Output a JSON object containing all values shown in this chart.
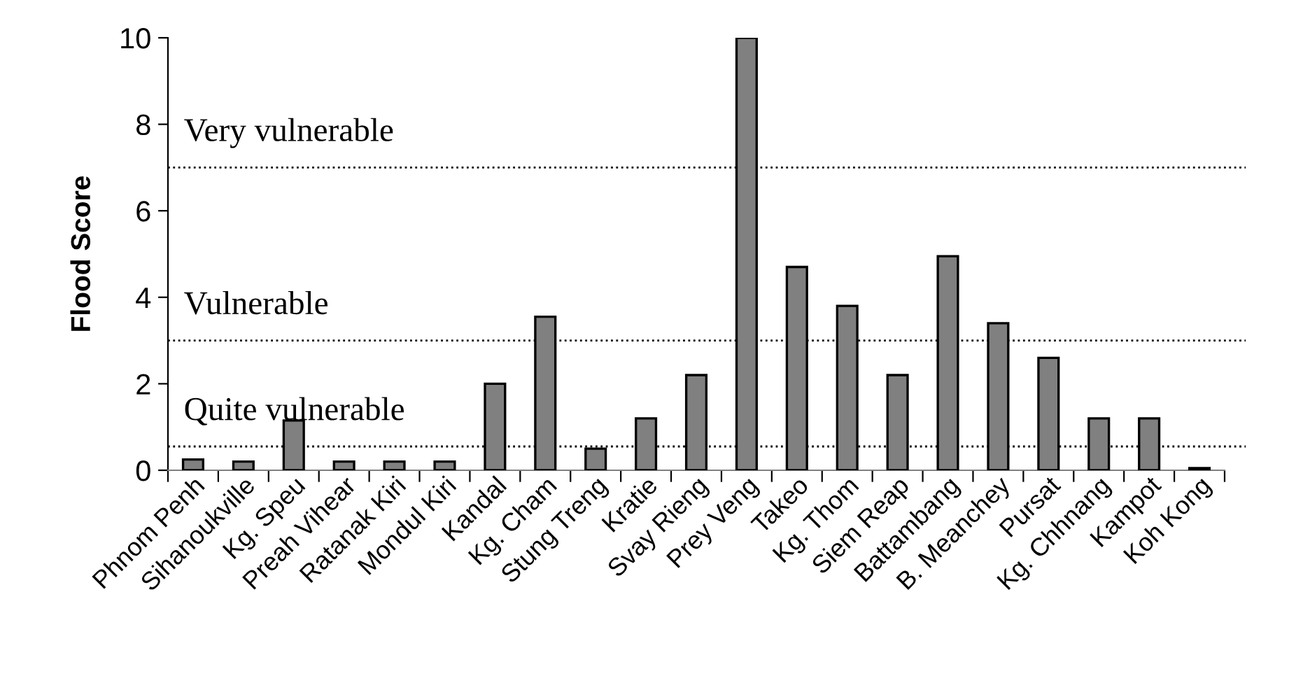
{
  "chart_data": {
    "type": "bar",
    "ylabel": "Flood Score",
    "categories": [
      "Phnom Penh",
      "Sihanoukville",
      "Kg. Speu",
      "Preah Vihear",
      "Ratanak Kiri",
      "Mondul Kiri",
      "Kandal",
      "Kg. Cham",
      "Stung Treng",
      "Kratie",
      "Svay Rieng",
      "Prey Veng",
      "Takeo",
      "Kg. Thom",
      "Siem Reap",
      "Battambang",
      "B. Meanchey",
      "Pursat",
      "Kg. Chhnang",
      "Kampot",
      "Koh Kong"
    ],
    "values": [
      0.25,
      0.2,
      1.15,
      0.2,
      0.2,
      0.2,
      2.0,
      3.55,
      0.5,
      1.2,
      2.2,
      10,
      4.7,
      3.8,
      2.2,
      4.95,
      3.4,
      2.6,
      1.2,
      1.2,
      0.05
    ],
    "color": "#808080",
    "ylim": [
      0,
      10
    ],
    "yticks": [
      0,
      2,
      4,
      6,
      8,
      10
    ],
    "grid": false,
    "legend": false,
    "ref_lines": [
      {
        "axis": "y",
        "value": 0.55,
        "label": "Quite vulnerable",
        "color": "#000000",
        "line_style": "dotted"
      },
      {
        "axis": "y",
        "value": 3,
        "label": "Vulnerable",
        "color": "#000000",
        "line_style": "dotted"
      },
      {
        "axis": "y",
        "value": 7,
        "label": "Very vulnerable",
        "color": "#000000",
        "line_style": "dotted"
      }
    ]
  }
}
